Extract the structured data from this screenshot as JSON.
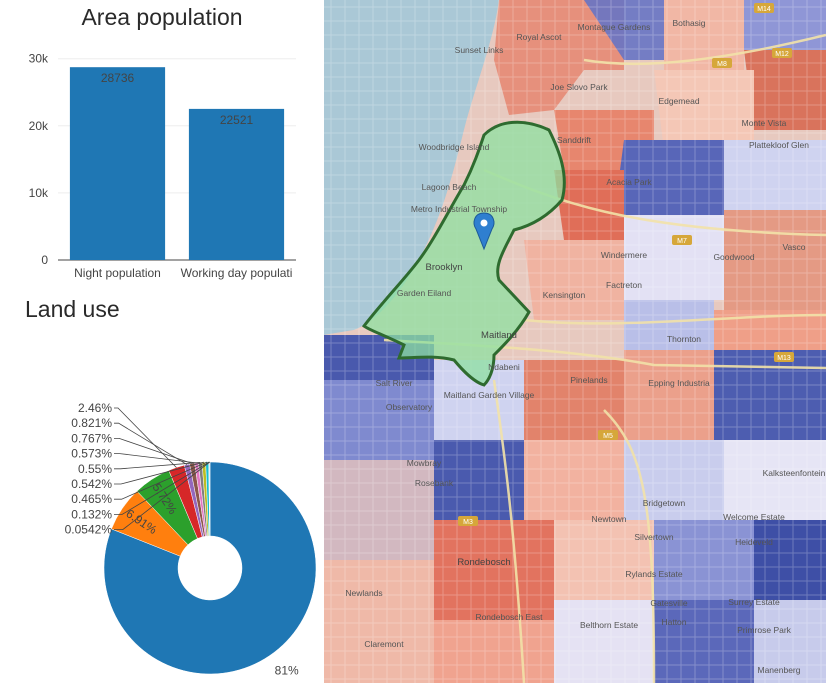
{
  "bar_chart_title": "Area population",
  "pie_chart_title": "Land use",
  "chart_data": [
    {
      "type": "bar",
      "title": "Area population",
      "categories": [
        "Night population",
        "Working day populati"
      ],
      "values": [
        28736,
        22521
      ],
      "data_labels": [
        "28736",
        "22521"
      ],
      "y_ticks": [
        "0",
        "10k",
        "20k",
        "30k"
      ],
      "ylim": [
        0,
        31000
      ],
      "grid": true,
      "color": "#1f77b4"
    },
    {
      "type": "pie",
      "title": "Land use",
      "donut": true,
      "values": [
        81,
        6.91,
        5.72,
        2.46,
        0.821,
        0.767,
        0.573,
        0.55,
        0.542,
        0.465,
        0.132,
        0.0542
      ],
      "labels": [
        "81%",
        "6.91%",
        "5.72%",
        "2.46%",
        "0.821%",
        "0.767%",
        "0.573%",
        "0.55%",
        "0.542%",
        "0.465%",
        "0.132%",
        "0.0542%"
      ],
      "colors": [
        "#1f77b4",
        "#ff7f0e",
        "#2ca02c",
        "#d62728",
        "#9467bd",
        "#8c564b",
        "#e377c2",
        "#7f7f7f",
        "#bcbd22",
        "#17becf",
        "#aec7e8",
        "#ffbb78"
      ]
    }
  ],
  "map": {
    "marker": "map-pin-icon",
    "highlight_color": "#8ee0a0",
    "place_labels": [
      "Sunset Links",
      "Royal Ascot",
      "Montague Gardens",
      "Bothasig",
      "Joe Slovo Park",
      "Edgemead",
      "Monte Vista",
      "Plattekloof Glen",
      "Woodbridge Island",
      "Sanddrift",
      "Acacia Park",
      "Lagoon Beach",
      "Metro Industrial Township",
      "Windermere",
      "Goodwood",
      "Vasco",
      "Kensington",
      "Factreton",
      "Brooklyn",
      "Garden Eiland",
      "Thornton",
      "Epping Industria",
      "Maitland",
      "Salt River",
      "Ndabeni",
      "Pinelands",
      "Maitland Garden Village",
      "Observatory",
      "Mowbray",
      "Rosebank",
      "Bridgetown",
      "Kalksteenfontein",
      "Welcome Estate",
      "Heideveld",
      "Newtown",
      "Silvertown",
      "Rondebosch",
      "Rylands Estate",
      "Newlands",
      "Rondebosch East",
      "Gatesville",
      "Surrey Estate",
      "Hatton",
      "Primrose Park",
      "Belthorn Estate",
      "Claremont",
      "Manenberg"
    ],
    "road_labels": [
      "M14",
      "M12",
      "M8",
      "M7",
      "M5",
      "M13",
      "M3"
    ]
  }
}
